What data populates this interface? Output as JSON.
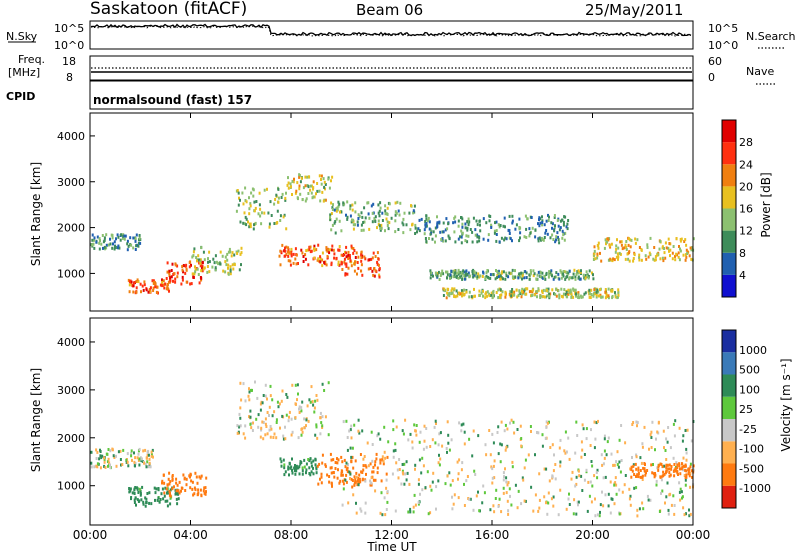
{
  "header": {
    "station": "Saskatoon (fitACF)",
    "beam": "Beam 06",
    "date": "25/May/2011"
  },
  "noise_panel": {
    "left_label": "N.Sky",
    "left_ticks": [
      "10^5",
      "10^0"
    ],
    "right_label": "N.Search",
    "right_ticks": [
      "10^5",
      "10^0"
    ]
  },
  "freq_panel": {
    "left_label_1": "Freq.",
    "left_label_2": "[MHz]",
    "left_ticks": [
      "18",
      "8"
    ],
    "right_label": "Nave",
    "right_ticks": [
      "60",
      "0"
    ]
  },
  "cpid_panel": {
    "label": "CPID",
    "mode": "normalsound (fast) 157"
  },
  "power_panel": {
    "ylabel": "Slant Range [km]",
    "yticks": [
      "4000",
      "3000",
      "2000",
      "1000"
    ],
    "colorbar_label": "Power [dB]",
    "colorbar_ticks": [
      "28",
      "24",
      "20",
      "16",
      "12",
      "8",
      "4"
    ],
    "colors": [
      "#1010d0",
      "#2060b0",
      "#3e8c5a",
      "#8cc070",
      "#e8c020",
      "#f07f10",
      "#ff3010",
      "#e00000"
    ]
  },
  "velocity_panel": {
    "ylabel": "Slant Range [km]",
    "yticks": [
      "4000",
      "3000",
      "2000",
      "1000"
    ],
    "colorbar_label": "Velocity [m s⁻¹]",
    "colorbar_ticks": [
      "1000",
      "500",
      "100",
      "25",
      "-25",
      "-100",
      "-500",
      "-1000"
    ],
    "colors": [
      "#1a2ea0",
      "#3a7ab8",
      "#2e8b57",
      "#5ec83c",
      "#c8c8c8",
      "#ffb050",
      "#ff7a10",
      "#e02010"
    ]
  },
  "x_axis": {
    "ticks": [
      "00:00",
      "04:00",
      "08:00",
      "12:00",
      "16:00",
      "20:00",
      "00:00"
    ],
    "label": "Time UT"
  },
  "chart_data": {
    "type": "heatmap",
    "time_range_hours": [
      0,
      24
    ],
    "range_km": [
      180,
      4500
    ],
    "power_db_range": [
      0,
      30
    ],
    "velocity_range": [
      -1000,
      1000
    ],
    "power_features": [
      {
        "t0": 0.0,
        "t1": 2.0,
        "r0": 1550,
        "r1": 1900,
        "power": 10
      },
      {
        "t0": 1.5,
        "t1": 3.2,
        "r0": 600,
        "r1": 900,
        "power": 24
      },
      {
        "t0": 3.0,
        "t1": 4.5,
        "r0": 800,
        "r1": 1300,
        "power": 26
      },
      {
        "t0": 4.0,
        "t1": 6.0,
        "r0": 1000,
        "r1": 1600,
        "power": 14
      },
      {
        "t0": 5.8,
        "t1": 7.8,
        "r0": 2000,
        "r1": 2900,
        "power": 14
      },
      {
        "t0": 7.8,
        "t1": 9.6,
        "r0": 2600,
        "r1": 3200,
        "power": 16
      },
      {
        "t0": 7.5,
        "t1": 10.5,
        "r0": 1200,
        "r1": 1650,
        "power": 24
      },
      {
        "t0": 10.0,
        "t1": 11.5,
        "r0": 950,
        "r1": 1500,
        "power": 24
      },
      {
        "t0": 9.5,
        "t1": 13.0,
        "r0": 1900,
        "r1": 2600,
        "power": 12
      },
      {
        "t0": 13.0,
        "t1": 19.0,
        "r0": 1700,
        "r1": 2300,
        "power": 10
      },
      {
        "t0": 13.5,
        "t1": 20.0,
        "r0": 900,
        "r1": 1100,
        "power": 12
      },
      {
        "t0": 14.0,
        "t1": 21.0,
        "r0": 500,
        "r1": 700,
        "power": 16
      },
      {
        "t0": 20.0,
        "t1": 24.0,
        "r0": 1300,
        "r1": 1800,
        "power": 18
      }
    ],
    "velocity_features": [
      {
        "t0": 0.0,
        "t1": 2.5,
        "r0": 1400,
        "r1": 1800,
        "velocity": 0
      },
      {
        "t0": 1.5,
        "t1": 3.5,
        "r0": 600,
        "r1": 1000,
        "velocity": 150
      },
      {
        "t0": 2.8,
        "t1": 4.6,
        "r0": 800,
        "r1": 1300,
        "velocity": -200
      },
      {
        "t0": 5.8,
        "t1": 9.5,
        "r0": 2000,
        "r1": 3200,
        "velocity": 0
      },
      {
        "t0": 7.5,
        "t1": 9.0,
        "r0": 1250,
        "r1": 1600,
        "velocity": 150
      },
      {
        "t0": 9.0,
        "t1": 11.8,
        "r0": 1000,
        "r1": 1700,
        "velocity": -300
      },
      {
        "t0": 10.0,
        "t1": 24.0,
        "r0": 400,
        "r1": 2400,
        "velocity": 0
      },
      {
        "t0": 21.5,
        "t1": 24.0,
        "r0": 1200,
        "r1": 1500,
        "velocity": -200
      }
    ]
  }
}
